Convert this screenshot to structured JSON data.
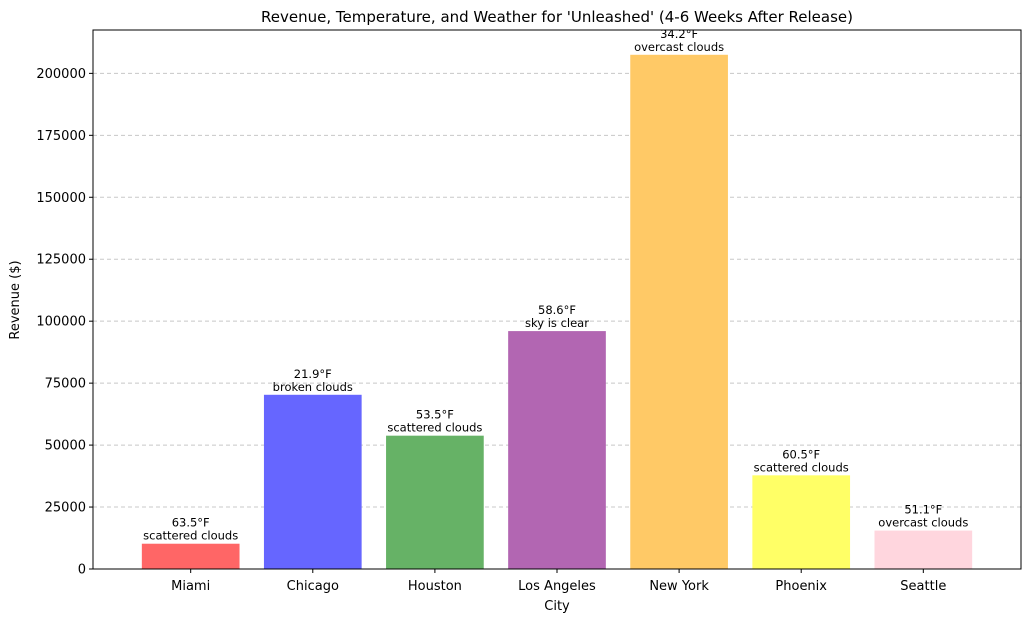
{
  "chart_data": {
    "type": "bar",
    "title": "Revenue, Temperature, and Weather for 'Unleashed' (4-6 Weeks After Release)",
    "xlabel": "City",
    "ylabel": "Revenue ($)",
    "ylim": [
      0,
      217500
    ],
    "yticks": [
      0,
      25000,
      50000,
      75000,
      100000,
      125000,
      150000,
      175000,
      200000
    ],
    "grid": "y-dashed",
    "categories": [
      "Miami",
      "Chicago",
      "Houston",
      "Los Angeles",
      "New York",
      "Phoenix",
      "Seattle"
    ],
    "values": [
      10200,
      70300,
      53800,
      96000,
      207500,
      37800,
      15500
    ],
    "colors": [
      "#ff6666",
      "#6666ff",
      "#66b266",
      "#b266b2",
      "#ffc966",
      "#ffff66",
      "#ffd6de"
    ],
    "temperatures": [
      "63.5°F",
      "21.9°F",
      "53.5°F",
      "58.6°F",
      "34.2°F",
      "60.5°F",
      "51.1°F"
    ],
    "weather": [
      "scattered clouds",
      "broken clouds",
      "scattered clouds",
      "sky is clear",
      "overcast clouds",
      "scattered clouds",
      "overcast clouds"
    ]
  }
}
